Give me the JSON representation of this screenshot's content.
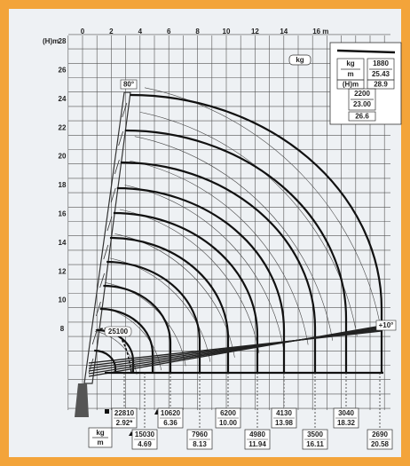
{
  "y_axis_label": "(H)m",
  "x_ticks": [
    "0",
    "2",
    "4",
    "6",
    "8",
    "10",
    "12",
    "14",
    "16 m"
  ],
  "y_ticks": [
    "28",
    "26",
    "24",
    "22",
    "20",
    "18",
    "16",
    "14",
    "12",
    "10",
    "8"
  ],
  "unit": "kg",
  "angle_max": "80°",
  "angle_min": "+10°",
  "boom_load": "25100",
  "legend": {
    "unit_top": "kg",
    "unit_bottom": "m",
    "height_label": "(H)m",
    "entries": [
      {
        "load": "1880",
        "radius": "25.43",
        "height": "28.9"
      },
      {
        "load": "2200",
        "radius": "23.00",
        "height": "26.6"
      }
    ]
  },
  "footer_unit": {
    "top": "kg",
    "bottom": "m"
  },
  "loads": [
    {
      "load": "22810",
      "radius": "2.92*"
    },
    {
      "load": "15030",
      "radius": "4.69"
    },
    {
      "load": "10620",
      "radius": "6.36"
    },
    {
      "load": "7960",
      "radius": "8.13"
    },
    {
      "load": "6200",
      "radius": "10.00"
    },
    {
      "load": "4980",
      "radius": "11.94"
    },
    {
      "load": "4130",
      "radius": "13.98"
    },
    {
      "load": "3500",
      "radius": "16.11"
    },
    {
      "load": "3040",
      "radius": "18.32"
    },
    {
      "load": "2690",
      "radius": "20.58"
    }
  ]
}
